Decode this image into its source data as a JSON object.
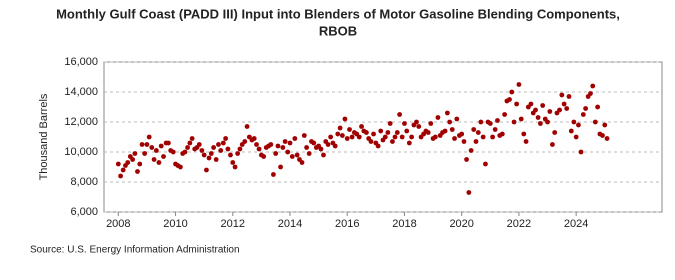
{
  "chart_data": {
    "type": "scatter",
    "title": [
      "Monthly Gulf Coast (PADD III) Input into Blenders of Motor Gasoline Blending Components,",
      "RBOB"
    ],
    "y_label": "Thousand Barrels",
    "source": "Source: U.S. Energy Information Administration",
    "xlim": [
      2007.5,
      2027
    ],
    "ylim": [
      6000,
      16000
    ],
    "xticks": [
      2008,
      2010,
      2012,
      2014,
      2016,
      2018,
      2020,
      2022,
      2024
    ],
    "yticks": [
      {
        "value": 6000,
        "label": "6,000"
      },
      {
        "value": 8000,
        "label": "8,000"
      },
      {
        "value": 10000,
        "label": "10,000"
      },
      {
        "value": 12000,
        "label": "12,000"
      },
      {
        "value": 14000,
        "label": "14,000"
      },
      {
        "value": 16000,
        "label": "16,000"
      }
    ],
    "grid": true,
    "series": [
      {
        "color": "#a00000",
        "x": [
          2008,
          2008.08,
          2008.17,
          2008.25,
          2008.33,
          2008.42,
          2008.5,
          2008.58,
          2008.67,
          2008.75,
          2008.83,
          2008.92,
          2009,
          2009.08,
          2009.17,
          2009.25,
          2009.33,
          2009.42,
          2009.5,
          2009.58,
          2009.67,
          2009.75,
          2009.83,
          2009.92,
          2010,
          2010.08,
          2010.17,
          2010.25,
          2010.33,
          2010.42,
          2010.5,
          2010.58,
          2010.67,
          2010.75,
          2010.83,
          2010.92,
          2011,
          2011.08,
          2011.17,
          2011.25,
          2011.33,
          2011.42,
          2011.5,
          2011.58,
          2011.67,
          2011.75,
          2011.83,
          2011.92,
          2012,
          2012.08,
          2012.17,
          2012.25,
          2012.33,
          2012.42,
          2012.5,
          2012.58,
          2012.67,
          2012.75,
          2012.83,
          2012.92,
          2013,
          2013.08,
          2013.17,
          2013.25,
          2013.33,
          2013.42,
          2013.5,
          2013.58,
          2013.67,
          2013.75,
          2013.83,
          2013.92,
          2014,
          2014.08,
          2014.17,
          2014.25,
          2014.33,
          2014.42,
          2014.5,
          2014.58,
          2014.67,
          2014.75,
          2014.83,
          2014.92,
          2015,
          2015.08,
          2015.17,
          2015.25,
          2015.33,
          2015.42,
          2015.5,
          2015.58,
          2015.67,
          2015.75,
          2015.83,
          2015.92,
          2016,
          2016.08,
          2016.17,
          2016.25,
          2016.33,
          2016.42,
          2016.5,
          2016.58,
          2016.67,
          2016.75,
          2016.83,
          2016.92,
          2017,
          2017.08,
          2017.17,
          2017.25,
          2017.33,
          2017.42,
          2017.5,
          2017.58,
          2017.67,
          2017.75,
          2017.83,
          2017.92,
          2018,
          2018.08,
          2018.17,
          2018.25,
          2018.33,
          2018.42,
          2018.5,
          2018.58,
          2018.67,
          2018.75,
          2018.83,
          2018.92,
          2019,
          2019.08,
          2019.17,
          2019.25,
          2019.33,
          2019.42,
          2019.5,
          2019.58,
          2019.67,
          2019.75,
          2019.83,
          2019.92,
          2020,
          2020.08,
          2020.17,
          2020.25,
          2020.33,
          2020.42,
          2020.5,
          2020.58,
          2020.67,
          2020.75,
          2020.83,
          2020.92,
          2021,
          2021.08,
          2021.17,
          2021.25,
          2021.33,
          2021.42,
          2021.5,
          2021.58,
          2021.67,
          2021.75,
          2021.83,
          2021.92,
          2022,
          2022.08,
          2022.17,
          2022.25,
          2022.33,
          2022.42,
          2022.5,
          2022.58,
          2022.67,
          2022.75,
          2022.83,
          2022.92,
          2023,
          2023.08,
          2023.17,
          2023.25,
          2023.33,
          2023.42,
          2023.5,
          2023.58,
          2023.67,
          2023.75,
          2023.83,
          2023.92,
          2024,
          2024.08,
          2024.17,
          2024.25,
          2024.33,
          2024.42,
          2024.5,
          2024.58,
          2024.67,
          2024.75,
          2024.83,
          2024.92,
          2025,
          2025.08
        ],
        "values": [
          9200,
          8400,
          8800,
          9100,
          9300,
          9700,
          9500,
          9900,
          8700,
          9200,
          10500,
          9900,
          10500,
          11000,
          10300,
          9500,
          10100,
          9300,
          10400,
          9700,
          10600,
          10600,
          10100,
          10000,
          9200,
          9100,
          9000,
          9900,
          10000,
          10300,
          10600,
          10900,
          10200,
          10300,
          10500,
          10100,
          9800,
          8800,
          9600,
          9900,
          10300,
          9500,
          10500,
          10100,
          10600,
          10900,
          10200,
          9800,
          9300,
          9000,
          9900,
          10200,
          10500,
          10700,
          11700,
          11000,
          10800,
          10900,
          10500,
          10200,
          9800,
          9700,
          10300,
          10400,
          10500,
          8500,
          9900,
          10400,
          9000,
          10300,
          10700,
          10000,
          10600,
          9700,
          10900,
          9800,
          9500,
          9300,
          11100,
          10300,
          9900,
          10700,
          10600,
          10300,
          10400,
          10200,
          9800,
          10700,
          10500,
          11000,
          10600,
          10400,
          11200,
          11600,
          11100,
          12200,
          10900,
          11500,
          11000,
          11300,
          11200,
          11000,
          11700,
          11400,
          11300,
          10900,
          10700,
          11200,
          10600,
          10400,
          11400,
          10800,
          11000,
          11300,
          11900,
          10700,
          11000,
          11300,
          12500,
          11000,
          11900,
          11400,
          10600,
          11000,
          11800,
          12000,
          11700,
          11000,
          11200,
          11400,
          11300,
          11900,
          10900,
          11000,
          12300,
          11100,
          11300,
          11400,
          12600,
          12000,
          11500,
          10900,
          12200,
          11100,
          11200,
          10700,
          9500,
          7300,
          10100,
          11500,
          10700,
          11300,
          12000,
          11000,
          9200,
          12000,
          11900,
          11000,
          11500,
          12100,
          11100,
          11200,
          12500,
          13400,
          13500,
          14000,
          12000,
          13200,
          14500,
          12200,
          11200,
          10700,
          13000,
          13200,
          12600,
          12800,
          12300,
          11900,
          13100,
          12200,
          12000,
          12700,
          10500,
          11300,
          12600,
          12800,
          13800,
          13200,
          12900,
          13700,
          11400,
          12000,
          11000,
          11800,
          10000,
          12500,
          12900,
          13700,
          13900,
          14400,
          12000,
          13000,
          11200,
          11100,
          11800,
          10900
        ]
      }
    ]
  }
}
